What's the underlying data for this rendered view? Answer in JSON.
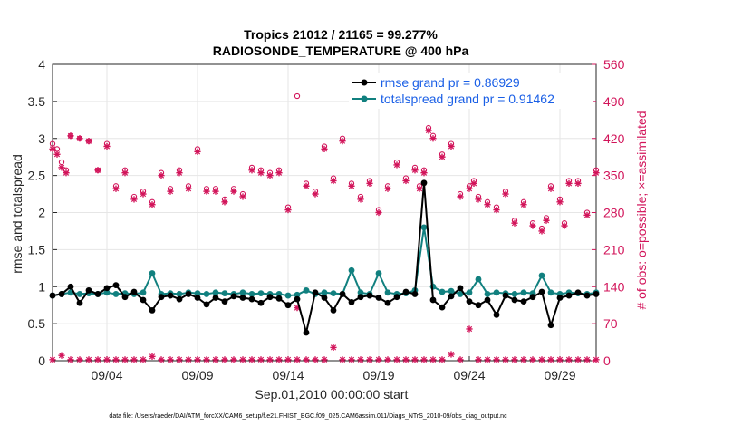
{
  "colors": {
    "rmse": "#000000",
    "spread": "#11807f",
    "obs": "#d2145a",
    "legend_text": "#1a5fe6",
    "grid": "#e6e6e6"
  },
  "chart_data": {
    "type": "line",
    "title": "Tropics 21012 / 21165 = 99.277%",
    "subtitle": "RADIOSONDE_TEMPERATURE @ 400 hPa",
    "xlabel": "Sep.01,2010 00:00:00 start",
    "ylabel_left": "rmse and totalspread",
    "ylabel_right": "# of obs: o=possible; ×=assimilated",
    "xlim": [
      1,
      31
    ],
    "ylim_left": [
      0,
      4
    ],
    "ylim_right": [
      0,
      560
    ],
    "x_ticks": [
      4,
      9,
      14,
      19,
      24,
      29
    ],
    "x_tick_labels": [
      "09/04",
      "09/09",
      "09/14",
      "09/19",
      "09/24",
      "09/29"
    ],
    "yticks_left": [
      "0",
      "0.5",
      "1",
      "1.5",
      "2",
      "2.5",
      "3",
      "3.5",
      "4"
    ],
    "yticks_right": [
      "0",
      "70",
      "140",
      "210",
      "280",
      "350",
      "420",
      "490",
      "560"
    ],
    "legend": [
      "rmse grand pr = 0.86929",
      "totalspread grand pr = 0.91462"
    ],
    "footer": "data file: /Users/raeder/DAI/ATM_forcXX/CAM6_setup/f.e21.FHIST_BGC.f09_025.CAM6assim.011/Diags_NTrS_2010-09/obs_diag_output.nc",
    "time_step_days": 0.25,
    "series": [
      {
        "name": "rmse",
        "axis": "left",
        "x": [
          1.0,
          1.5,
          2.0,
          2.5,
          3.0,
          3.5,
          4.0,
          4.5,
          5.0,
          5.5,
          6.0,
          6.5,
          7.0,
          7.5,
          8.0,
          8.5,
          9.0,
          9.5,
          10.0,
          10.5,
          11.0,
          11.5,
          12.0,
          12.5,
          13.0,
          13.5,
          14.0,
          14.5,
          15.0,
          15.5,
          16.0,
          16.5,
          17.0,
          17.5,
          18.0,
          18.5,
          19.0,
          19.5,
          20.0,
          20.5,
          21.0,
          21.5,
          22.0,
          22.5,
          23.0,
          23.5,
          24.0,
          24.5,
          25.0,
          25.5,
          26.0,
          26.5,
          27.0,
          27.5,
          28.0,
          28.5,
          29.0,
          29.5,
          30.0,
          30.5,
          31.0
        ],
        "values": [
          0.88,
          0.9,
          1.0,
          0.78,
          0.95,
          0.9,
          0.98,
          1.02,
          0.86,
          0.93,
          0.82,
          0.68,
          0.86,
          0.88,
          0.83,
          0.9,
          0.85,
          0.76,
          0.85,
          0.8,
          0.87,
          0.85,
          0.83,
          0.78,
          0.86,
          0.84,
          0.75,
          0.83,
          0.38,
          0.92,
          0.85,
          0.68,
          0.9,
          0.79,
          0.86,
          0.88,
          0.85,
          0.78,
          0.86,
          0.93,
          0.9,
          2.4,
          0.82,
          0.72,
          0.87,
          0.98,
          0.8,
          0.75,
          0.82,
          0.62,
          0.88,
          0.82,
          0.8,
          0.86,
          0.93,
          0.48,
          0.85,
          0.88,
          0.92,
          0.88,
          0.9
        ]
      },
      {
        "name": "totalspread",
        "axis": "left",
        "x": [
          1.0,
          1.5,
          2.0,
          2.5,
          3.0,
          3.5,
          4.0,
          4.5,
          5.0,
          5.5,
          6.0,
          6.5,
          7.0,
          7.5,
          8.0,
          8.5,
          9.0,
          9.5,
          10.0,
          10.5,
          11.0,
          11.5,
          12.0,
          12.5,
          13.0,
          13.5,
          14.0,
          14.5,
          15.0,
          15.5,
          16.0,
          16.5,
          17.0,
          17.5,
          18.0,
          18.5,
          19.0,
          19.5,
          20.0,
          20.5,
          21.0,
          21.5,
          22.0,
          22.5,
          23.0,
          23.5,
          24.0,
          24.5,
          25.0,
          25.5,
          26.0,
          26.5,
          27.0,
          27.5,
          28.0,
          28.5,
          29.0,
          29.5,
          30.0,
          30.5,
          31.0
        ],
        "values": [
          0.88,
          0.9,
          0.92,
          0.9,
          0.91,
          0.9,
          0.92,
          0.9,
          0.91,
          0.9,
          0.92,
          1.18,
          0.9,
          0.91,
          0.9,
          0.92,
          0.91,
          0.9,
          0.92,
          0.91,
          0.9,
          0.92,
          0.9,
          0.91,
          0.9,
          0.9,
          0.88,
          0.89,
          0.95,
          0.9,
          0.92,
          0.91,
          0.9,
          1.22,
          0.92,
          0.9,
          1.18,
          0.92,
          0.9,
          0.91,
          0.95,
          1.8,
          1.0,
          0.93,
          0.94,
          0.9,
          0.92,
          1.1,
          0.9,
          0.92,
          0.91,
          0.9,
          0.92,
          0.91,
          1.15,
          0.92,
          0.9,
          0.92,
          0.91,
          0.9,
          0.92
        ]
      },
      {
        "name": "obs_possible",
        "axis": "right",
        "x": [
          1.0,
          1.25,
          1.5,
          1.75,
          2.0,
          2.5,
          3.0,
          3.5,
          4.0,
          4.5,
          5.0,
          5.5,
          6.0,
          6.5,
          7.0,
          7.5,
          8.0,
          8.5,
          9.0,
          9.5,
          10.0,
          10.5,
          11.0,
          11.5,
          12.0,
          12.5,
          13.0,
          13.5,
          14.0,
          14.5,
          15.0,
          15.5,
          16.0,
          16.5,
          17.0,
          17.5,
          18.0,
          18.5,
          19.0,
          19.5,
          20.0,
          20.5,
          21.0,
          21.25,
          21.5,
          21.75,
          22.0,
          22.5,
          23.0,
          23.5,
          24.0,
          24.25,
          24.5,
          25.0,
          25.5,
          26.0,
          26.5,
          27.0,
          27.5,
          28.0,
          28.25,
          28.5,
          29.0,
          29.25,
          29.5,
          30.0,
          30.5,
          31.0
        ],
        "values": [
          410,
          400,
          375,
          360,
          425,
          420,
          415,
          360,
          410,
          330,
          360,
          310,
          320,
          300,
          355,
          325,
          360,
          330,
          400,
          325,
          325,
          305,
          325,
          315,
          365,
          360,
          355,
          360,
          290,
          500,
          335,
          320,
          405,
          345,
          420,
          335,
          310,
          340,
          285,
          330,
          375,
          345,
          365,
          330,
          360,
          440,
          425,
          390,
          410,
          315,
          330,
          340,
          310,
          300,
          290,
          320,
          265,
          300,
          260,
          250,
          270,
          330,
          305,
          260,
          340,
          340,
          280,
          360
        ]
      },
      {
        "name": "obs_assimilated",
        "axis": "right",
        "x": [
          1.0,
          1.25,
          1.5,
          1.75,
          2.0,
          2.5,
          3.0,
          3.5,
          4.0,
          4.5,
          5.0,
          5.5,
          6.0,
          6.5,
          7.0,
          7.5,
          8.0,
          8.5,
          9.0,
          9.5,
          10.0,
          10.5,
          11.0,
          11.5,
          12.0,
          12.5,
          13.0,
          13.5,
          14.0,
          14.5,
          15.0,
          15.5,
          16.0,
          16.5,
          17.0,
          17.5,
          18.0,
          18.5,
          19.0,
          19.5,
          20.0,
          20.5,
          21.0,
          21.25,
          21.5,
          21.75,
          22.0,
          22.5,
          23.0,
          23.5,
          24.0,
          24.25,
          24.5,
          25.0,
          25.5,
          26.0,
          26.5,
          27.0,
          27.5,
          28.0,
          28.25,
          28.5,
          29.0,
          29.25,
          29.5,
          30.0,
          30.5,
          31.0
        ],
        "values": [
          400,
          390,
          365,
          355,
          425,
          420,
          415,
          360,
          405,
          325,
          355,
          305,
          315,
          295,
          350,
          320,
          355,
          325,
          395,
          320,
          320,
          300,
          320,
          310,
          360,
          355,
          350,
          355,
          285,
          100,
          330,
          315,
          400,
          340,
          415,
          330,
          305,
          335,
          280,
          325,
          370,
          340,
          360,
          325,
          355,
          435,
          420,
          385,
          405,
          310,
          325,
          335,
          305,
          295,
          285,
          315,
          260,
          295,
          255,
          245,
          265,
          325,
          300,
          255,
          335,
          335,
          275,
          355
        ]
      },
      {
        "name": "obs_rejected_baseline",
        "axis": "right",
        "x": [
          1.0,
          1.5,
          2.0,
          2.5,
          3.0,
          3.5,
          4.0,
          4.5,
          5.0,
          5.5,
          6.0,
          6.5,
          7.0,
          7.5,
          8.0,
          8.5,
          9.0,
          9.5,
          10.0,
          10.5,
          11.0,
          11.5,
          12.0,
          12.5,
          13.0,
          13.5,
          14.0,
          14.5,
          15.0,
          15.5,
          16.0,
          16.5,
          17.0,
          17.5,
          18.0,
          18.5,
          19.0,
          19.5,
          20.0,
          20.5,
          21.0,
          21.5,
          22.0,
          22.5,
          23.0,
          23.5,
          24.0,
          24.5,
          25.0,
          25.5,
          26.0,
          26.5,
          27.0,
          27.5,
          28.0,
          28.5,
          29.0,
          29.5,
          30.0,
          30.5,
          31.0
        ],
        "values": [
          2,
          10,
          2,
          2,
          2,
          2,
          2,
          2,
          2,
          2,
          2,
          8,
          2,
          2,
          2,
          2,
          2,
          2,
          2,
          2,
          2,
          2,
          2,
          2,
          2,
          2,
          2,
          2,
          2,
          2,
          2,
          25,
          2,
          2,
          2,
          2,
          2,
          2,
          2,
          2,
          2,
          2,
          2,
          2,
          12,
          2,
          60,
          2,
          2,
          2,
          2,
          2,
          2,
          2,
          2,
          2,
          2,
          2,
          2,
          2,
          2
        ]
      }
    ]
  }
}
